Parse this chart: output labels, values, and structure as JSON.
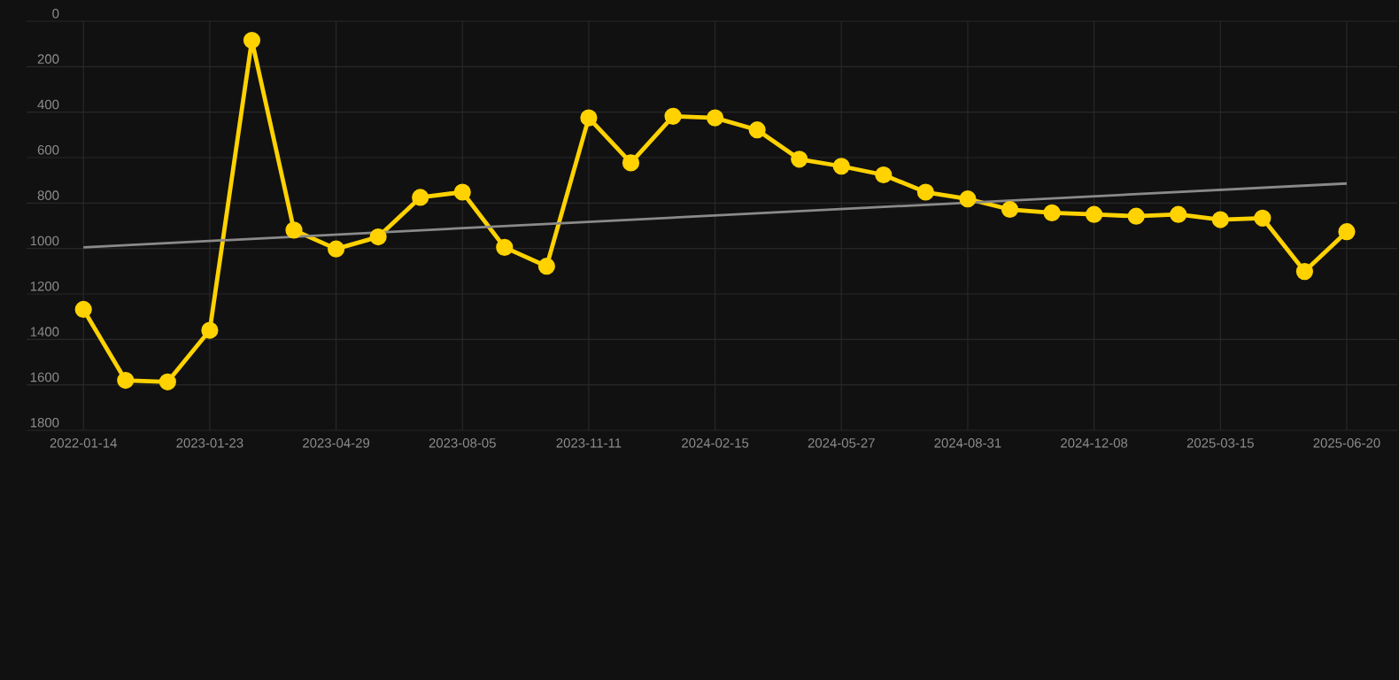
{
  "chart_data": {
    "type": "line",
    "categories": [
      "2022-01-14",
      null,
      null,
      "2023-01-23",
      null,
      null,
      "2023-04-29",
      null,
      null,
      "2023-08-05",
      null,
      null,
      "2023-11-11",
      null,
      null,
      "2024-02-15",
      null,
      null,
      "2024-05-27",
      null,
      null,
      "2024-08-31",
      null,
      null,
      "2024-12-08",
      null,
      null,
      "2025-03-15",
      null,
      null,
      "2025-06-20"
    ],
    "series": [
      {
        "color": "#ffd200",
        "marker": "circle",
        "values": [
          1268,
          1580,
          1587,
          1360,
          84,
          919,
          1002,
          949,
          775,
          752,
          995,
          1078,
          425,
          623,
          418,
          425,
          478,
          607,
          638,
          676,
          752,
          782,
          828,
          843,
          850,
          858,
          850,
          873,
          866,
          1101,
          926
        ]
      },
      {
        "type": "line",
        "color": "#8a8a8a",
        "marker": "none",
        "values": [
          995,
          null,
          null,
          null,
          null,
          null,
          null,
          null,
          null,
          null,
          null,
          null,
          null,
          null,
          null,
          null,
          null,
          null,
          null,
          null,
          null,
          null,
          null,
          null,
          null,
          null,
          null,
          null,
          null,
          null,
          714
        ]
      }
    ],
    "ylim": [
      1800,
      0
    ],
    "yticks": [
      0,
      200,
      400,
      600,
      800,
      1000,
      1200,
      1400,
      1600,
      1800
    ],
    "grid": true
  }
}
